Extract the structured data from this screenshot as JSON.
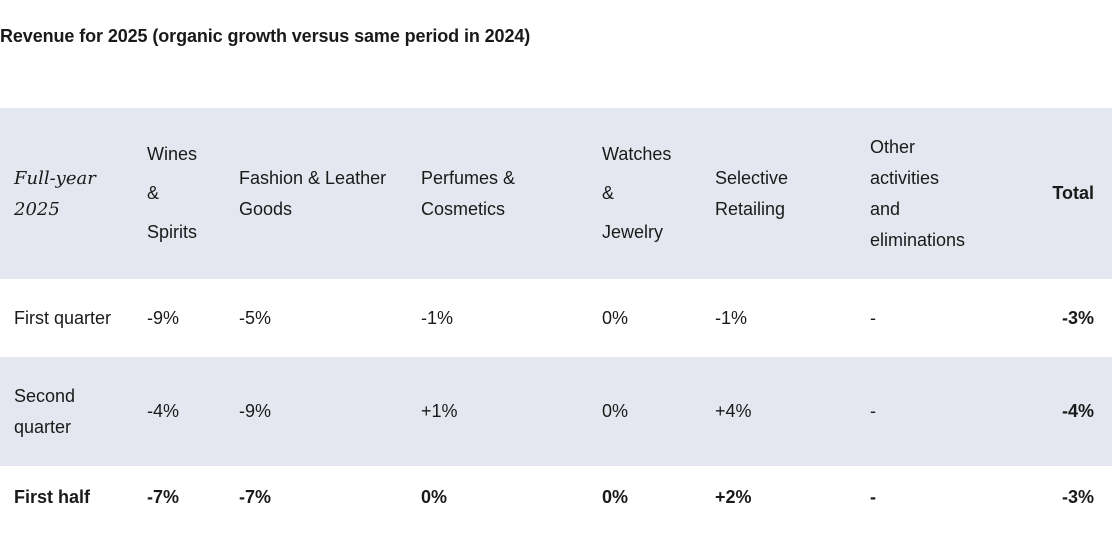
{
  "title": "Revenue for 2025 (organic growth versus same period in 2024)",
  "header": {
    "period": [
      "Full-year",
      "2025"
    ],
    "wines_spirits": [
      "Wines",
      "&",
      "Spirits"
    ],
    "fashion": [
      "Fashion & Leather",
      "Goods"
    ],
    "perfumes": [
      "Perfumes &",
      "Cosmetics"
    ],
    "watches": [
      "Watches",
      "&",
      "Jewelry"
    ],
    "selective": [
      "Selective",
      "Retailing"
    ],
    "other": [
      "Other",
      "activities",
      "and",
      "eliminations"
    ],
    "total": "Total"
  },
  "rows": [
    {
      "label": [
        "First quarter"
      ],
      "wines": "-9%",
      "fashion": "-5%",
      "perfumes": "-1%",
      "watches": "0%",
      "selective": "-1%",
      "other": "-",
      "total": "-3%"
    },
    {
      "label": [
        "Second",
        "quarter"
      ],
      "wines": "-4%",
      "fashion": "-9%",
      "perfumes": "+1%",
      "watches": "0%",
      "selective": "+4%",
      "other": "-",
      "total": "-4%"
    },
    {
      "label": [
        "First half"
      ],
      "wines": "-7%",
      "fashion": "-7%",
      "perfumes": "0%",
      "watches": "0%",
      "selective": "+2%",
      "other": "-",
      "total": "-3%"
    }
  ]
}
